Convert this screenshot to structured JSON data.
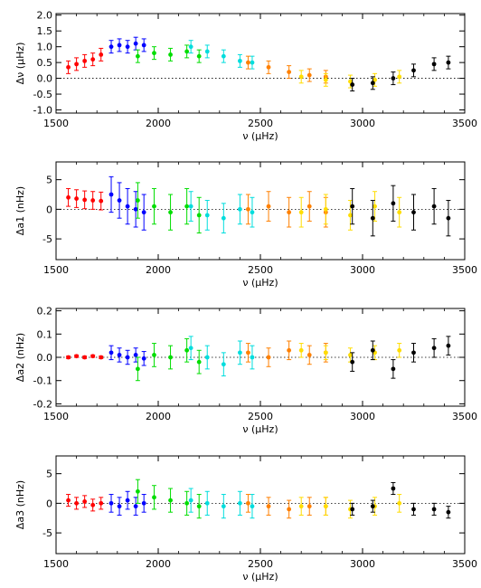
{
  "chart_data": [
    {
      "type": "scatter",
      "xlabel": "ν (μHz)",
      "ylabel": "Δν (μHz)",
      "xlim": [
        1500,
        3500
      ],
      "ylim": [
        -1.1,
        2.05
      ],
      "xticks": [
        1500,
        2000,
        2500,
        3000,
        3500
      ],
      "xtick_labels": [
        "1500",
        "2000",
        "2500",
        "3000",
        "3500"
      ],
      "yticks": [
        -1.0,
        -0.5,
        0.0,
        0.5,
        1.0,
        1.5,
        2.0
      ],
      "ytick_labels": [
        "-1.0",
        "-0.5",
        "0.0",
        "0.5",
        "1.0",
        "1.5",
        "2.0"
      ],
      "zero_line": true,
      "series": [
        {
          "color": "#ff0000",
          "x": [
            1560,
            1600,
            1640,
            1680,
            1720
          ],
          "y": [
            0.35,
            0.45,
            0.55,
            0.6,
            0.75
          ],
          "yerr": [
            0.2,
            0.2,
            0.2,
            0.2,
            0.2
          ]
        },
        {
          "color": "#0000ff",
          "x": [
            1770,
            1810,
            1850,
            1890,
            1930
          ],
          "y": [
            1.0,
            1.05,
            1.0,
            1.1,
            1.05
          ],
          "yerr": [
            0.2,
            0.2,
            0.2,
            0.2,
            0.2
          ]
        },
        {
          "color": "#00dd00",
          "x": [
            1900,
            1980,
            2060,
            2140,
            2200
          ],
          "y": [
            0.7,
            0.8,
            0.75,
            0.85,
            0.7
          ],
          "yerr": [
            0.2,
            0.2,
            0.2,
            0.2,
            0.2
          ]
        },
        {
          "color": "#00dddd",
          "x": [
            2160,
            2240,
            2320,
            2400,
            2460
          ],
          "y": [
            1.0,
            0.85,
            0.7,
            0.55,
            0.5
          ],
          "yerr": [
            0.2,
            0.2,
            0.2,
            0.2,
            0.2
          ]
        },
        {
          "color": "#ff8000",
          "x": [
            2440,
            2540,
            2640,
            2740,
            2820
          ],
          "y": [
            0.5,
            0.35,
            0.2,
            0.1,
            0.05
          ],
          "yerr": [
            0.2,
            0.2,
            0.2,
            0.2,
            0.2
          ]
        },
        {
          "color": "#ffdd00",
          "x": [
            2700,
            2820,
            2940,
            3060,
            3180
          ],
          "y": [
            0.05,
            -0.05,
            -0.1,
            -0.05,
            0.05
          ],
          "yerr": [
            0.2,
            0.2,
            0.2,
            0.2,
            0.2
          ]
        },
        {
          "color": "#000000",
          "x": [
            2950,
            3050,
            3150,
            3250,
            3350,
            3420
          ],
          "y": [
            -0.2,
            -0.15,
            0.0,
            0.25,
            0.45,
            0.5
          ],
          "yerr": [
            0.2,
            0.2,
            0.2,
            0.2,
            0.2,
            0.2
          ]
        }
      ]
    },
    {
      "type": "scatter",
      "xlabel": "ν (μHz)",
      "ylabel": "Δa1 (nHz)",
      "xlim": [
        1500,
        3500
      ],
      "ylim": [
        -8.5,
        8
      ],
      "xticks": [
        1500,
        2000,
        2500,
        3000,
        3500
      ],
      "xtick_labels": [
        "1500",
        "2000",
        "2500",
        "3000",
        "3500"
      ],
      "yticks": [
        -5,
        0,
        5
      ],
      "ytick_labels": [
        "-5",
        "0",
        "5"
      ],
      "zero_line": true,
      "series": [
        {
          "color": "#ff0000",
          "x": [
            1560,
            1600,
            1640,
            1680,
            1720
          ],
          "y": [
            2.0,
            1.8,
            1.6,
            1.5,
            1.4
          ],
          "yerr": [
            1.5,
            1.5,
            1.5,
            1.5,
            1.5
          ]
        },
        {
          "color": "#0000ff",
          "x": [
            1770,
            1810,
            1850,
            1890,
            1930
          ],
          "y": [
            2.5,
            1.5,
            0.5,
            0.0,
            -0.5
          ],
          "yerr": [
            3.0,
            3.0,
            3.0,
            3.0,
            3.0
          ]
        },
        {
          "color": "#00dd00",
          "x": [
            1900,
            1980,
            2060,
            2140,
            2200
          ],
          "y": [
            1.5,
            0.5,
            -0.5,
            0.5,
            -1.0
          ],
          "yerr": [
            3.0,
            3.0,
            3.0,
            3.0,
            3.0
          ]
        },
        {
          "color": "#00dddd",
          "x": [
            2160,
            2240,
            2320,
            2400,
            2460
          ],
          "y": [
            0.5,
            -1.0,
            -1.5,
            0.0,
            -0.5
          ],
          "yerr": [
            2.5,
            2.5,
            2.5,
            2.5,
            2.5
          ]
        },
        {
          "color": "#ff8000",
          "x": [
            2440,
            2540,
            2640,
            2740,
            2820
          ],
          "y": [
            0.0,
            0.5,
            -0.5,
            0.5,
            -0.5
          ],
          "yerr": [
            2.5,
            2.5,
            2.5,
            2.5,
            2.5
          ]
        },
        {
          "color": "#ffdd00",
          "x": [
            2700,
            2820,
            2940,
            3060,
            3180
          ],
          "y": [
            -0.5,
            0.0,
            -1.0,
            0.5,
            -0.5
          ],
          "yerr": [
            2.5,
            2.5,
            2.5,
            2.5,
            2.5
          ]
        },
        {
          "color": "#000000",
          "x": [
            2950,
            3050,
            3150,
            3250,
            3350,
            3420
          ],
          "y": [
            0.5,
            -1.5,
            1.0,
            -0.5,
            0.5,
            -1.5
          ],
          "yerr": [
            3.0,
            3.0,
            3.0,
            3.0,
            3.0,
            3.0
          ]
        }
      ]
    },
    {
      "type": "scatter",
      "xlabel": "ν (μHz)",
      "ylabel": "Δa2 (nHz)",
      "xlim": [
        1500,
        3500
      ],
      "ylim": [
        -0.21,
        0.21
      ],
      "xticks": [
        1500,
        2000,
        2500,
        3000,
        3500
      ],
      "xtick_labels": [
        "1500",
        "2000",
        "2500",
        "3000",
        "3500"
      ],
      "yticks": [
        -0.2,
        -0.1,
        0.0,
        0.1,
        0.2
      ],
      "ytick_labels": [
        "-0.2",
        "-0.1",
        "0.0",
        "0.1",
        "0.2"
      ],
      "zero_line": true,
      "series": [
        {
          "color": "#ff0000",
          "x": [
            1560,
            1600,
            1640,
            1680,
            1720
          ],
          "y": [
            0.0,
            0.005,
            0.0,
            0.005,
            0.0
          ],
          "yerr": [
            0.005,
            0.005,
            0.005,
            0.005,
            0.005
          ]
        },
        {
          "color": "#0000ff",
          "x": [
            1770,
            1810,
            1850,
            1890,
            1930
          ],
          "y": [
            0.02,
            0.01,
            0.0,
            0.01,
            -0.005
          ],
          "yerr": [
            0.03,
            0.03,
            0.03,
            0.03,
            0.03
          ]
        },
        {
          "color": "#00dd00",
          "x": [
            1900,
            1980,
            2060,
            2140,
            2200
          ],
          "y": [
            -0.05,
            0.01,
            0.0,
            0.03,
            -0.02
          ],
          "yerr": [
            0.05,
            0.05,
            0.05,
            0.05,
            0.05
          ]
        },
        {
          "color": "#00dddd",
          "x": [
            2160,
            2240,
            2320,
            2400,
            2460
          ],
          "y": [
            0.04,
            0.0,
            -0.03,
            0.02,
            0.0
          ],
          "yerr": [
            0.05,
            0.05,
            0.05,
            0.05,
            0.05
          ]
        },
        {
          "color": "#ff8000",
          "x": [
            2440,
            2540,
            2640,
            2740,
            2820
          ],
          "y": [
            0.02,
            0.0,
            0.03,
            0.01,
            0.02
          ],
          "yerr": [
            0.04,
            0.04,
            0.04,
            0.04,
            0.04
          ]
        },
        {
          "color": "#ffdd00",
          "x": [
            2700,
            2820,
            2940,
            3060,
            3180
          ],
          "y": [
            0.03,
            0.02,
            0.01,
            0.02,
            0.03
          ],
          "yerr": [
            0.03,
            0.03,
            0.03,
            0.03,
            0.03
          ]
        },
        {
          "color": "#000000",
          "x": [
            2950,
            3050,
            3150,
            3250,
            3350,
            3420
          ],
          "y": [
            -0.02,
            0.03,
            -0.05,
            0.02,
            0.04,
            0.05
          ],
          "yerr": [
            0.04,
            0.04,
            0.04,
            0.04,
            0.04,
            0.04
          ]
        }
      ]
    },
    {
      "type": "scatter",
      "xlabel": "ν (μHz)",
      "ylabel": "Δa3 (nHz)",
      "xlim": [
        1500,
        3500
      ],
      "ylim": [
        -8.5,
        8
      ],
      "xticks": [
        1500,
        2000,
        2500,
        3000,
        3500
      ],
      "xtick_labels": [
        "1500",
        "2000",
        "2500",
        "3000",
        "3500"
      ],
      "yticks": [
        -5,
        0,
        5
      ],
      "ytick_labels": [
        "-5",
        "0",
        "5"
      ],
      "zero_line": true,
      "series": [
        {
          "color": "#ff0000",
          "x": [
            1560,
            1600,
            1640,
            1680,
            1720
          ],
          "y": [
            0.5,
            0.0,
            0.3,
            -0.3,
            0.0
          ],
          "yerr": [
            1.0,
            1.0,
            1.0,
            1.0,
            1.0
          ]
        },
        {
          "color": "#0000ff",
          "x": [
            1770,
            1810,
            1850,
            1890,
            1930
          ],
          "y": [
            0.0,
            -0.5,
            0.5,
            -0.5,
            0.0
          ],
          "yerr": [
            1.5,
            1.5,
            1.5,
            1.5,
            1.5
          ]
        },
        {
          "color": "#00dd00",
          "x": [
            1900,
            1980,
            2060,
            2140,
            2200
          ],
          "y": [
            2.0,
            1.0,
            0.5,
            0.0,
            -0.5
          ],
          "yerr": [
            2.0,
            2.0,
            2.0,
            2.0,
            2.0
          ]
        },
        {
          "color": "#00dddd",
          "x": [
            2160,
            2240,
            2320,
            2400,
            2460
          ],
          "y": [
            0.5,
            0.0,
            -0.5,
            0.0,
            -0.5
          ],
          "yerr": [
            2.0,
            2.0,
            2.0,
            2.0,
            2.0
          ]
        },
        {
          "color": "#ff8000",
          "x": [
            2440,
            2540,
            2640,
            2740,
            2820
          ],
          "y": [
            0.0,
            -0.5,
            -1.0,
            -0.5,
            -0.5
          ],
          "yerr": [
            1.5,
            1.5,
            1.5,
            1.5,
            1.5
          ]
        },
        {
          "color": "#ffdd00",
          "x": [
            2700,
            2820,
            2940,
            3060,
            3180
          ],
          "y": [
            -0.5,
            -0.5,
            -1.0,
            -0.5,
            0.0
          ],
          "yerr": [
            1.5,
            1.5,
            1.5,
            1.5,
            1.5
          ]
        },
        {
          "color": "#000000",
          "x": [
            2950,
            3050,
            3150,
            3250,
            3350,
            3420
          ],
          "y": [
            -1.0,
            -0.5,
            2.5,
            -1.0,
            -1.0,
            -1.5
          ],
          "yerr": [
            1.0,
            1.0,
            1.0,
            1.0,
            1.0,
            1.0
          ]
        }
      ]
    }
  ]
}
